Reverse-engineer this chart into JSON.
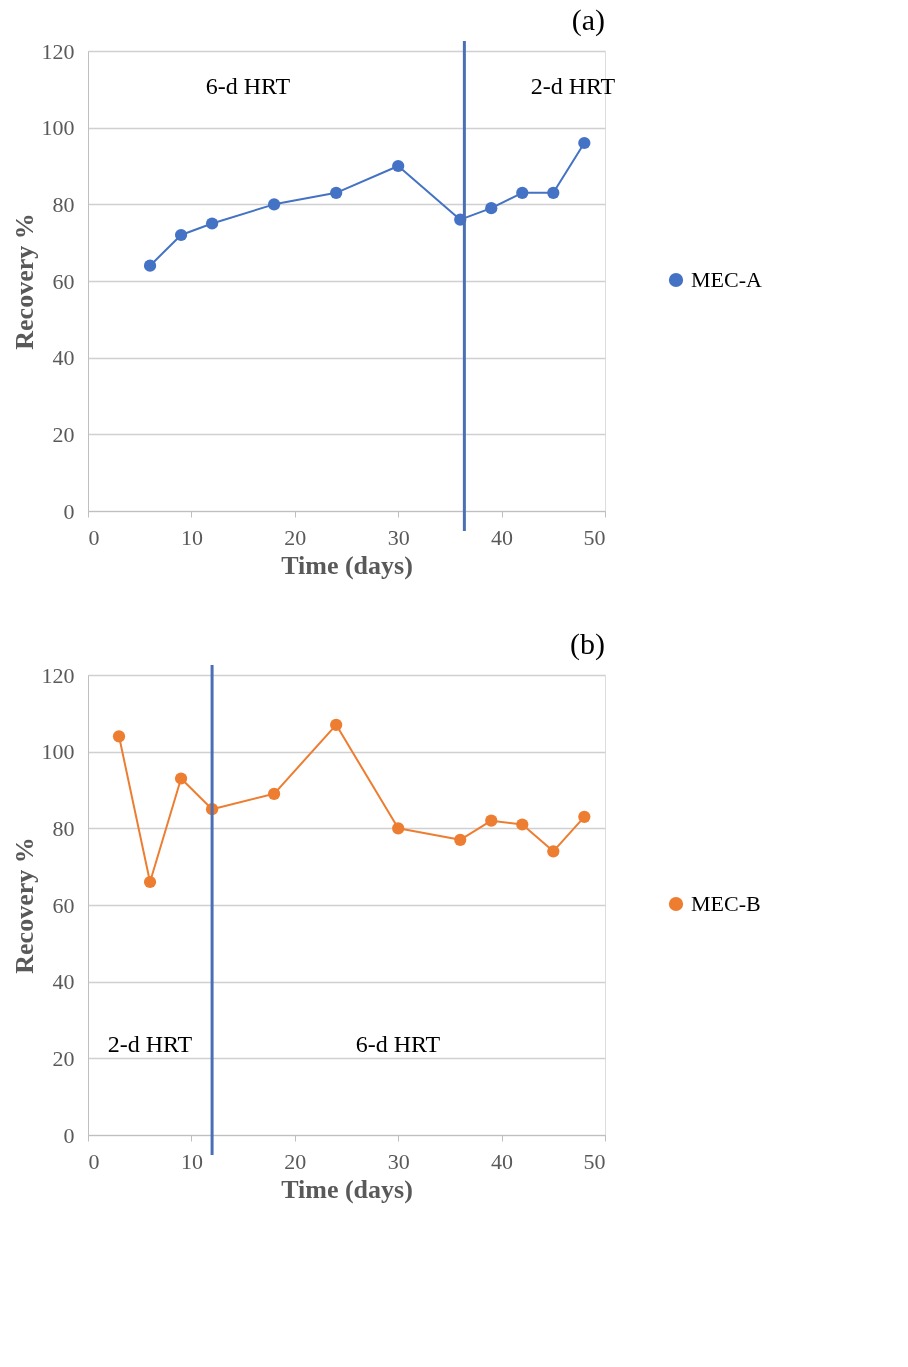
{
  "chart_data": [
    {
      "type": "line",
      "title": "(a)",
      "xlabel": "Time (days)",
      "ylabel": "Recovery %",
      "x": [
        6,
        9,
        12,
        18,
        24,
        30,
        36,
        39,
        42,
        45,
        48
      ],
      "series": [
        {
          "name": "MEC-A",
          "color": "#4472c4",
          "values": [
            64,
            72,
            75,
            80,
            83,
            90,
            76,
            79,
            83,
            83,
            96
          ]
        }
      ],
      "xlim": [
        0,
        50
      ],
      "xticks": [
        0,
        10,
        20,
        30,
        40,
        50
      ],
      "ylim": [
        0,
        120
      ],
      "yticks": [
        0,
        20,
        40,
        60,
        80,
        100,
        120
      ],
      "ref_lines": [
        {
          "axis": "x",
          "value": 36.4,
          "color": "#4a6fb5"
        }
      ],
      "annotations": [
        "6-d HRT",
        "2-d HRT"
      ],
      "grid": "y",
      "legend": "right",
      "marker": "circle",
      "line_style": "solid"
    },
    {
      "type": "line",
      "title": "(b)",
      "xlabel": "Time (days)",
      "ylabel": "Recovery %",
      "x": [
        3,
        6,
        9,
        12,
        18,
        24,
        30,
        36,
        39,
        42,
        45,
        48
      ],
      "series": [
        {
          "name": "MEC-B",
          "color": "#ed7d31",
          "values": [
            104,
            66,
            93,
            85,
            89,
            107,
            80,
            77,
            82,
            81,
            74,
            83
          ]
        }
      ],
      "xlim": [
        0,
        50
      ],
      "xticks": [
        0,
        10,
        20,
        30,
        40,
        50
      ],
      "ylim": [
        0,
        120
      ],
      "yticks": [
        0,
        20,
        40,
        60,
        80,
        100,
        120
      ],
      "ref_lines": [
        {
          "axis": "x",
          "value": 12,
          "color": "#4a6fb5"
        }
      ],
      "annotations": [
        "2-d HRT",
        "6-d HRT"
      ],
      "grid": "y",
      "legend": "right",
      "marker": "circle",
      "line_style": "solid"
    }
  ]
}
